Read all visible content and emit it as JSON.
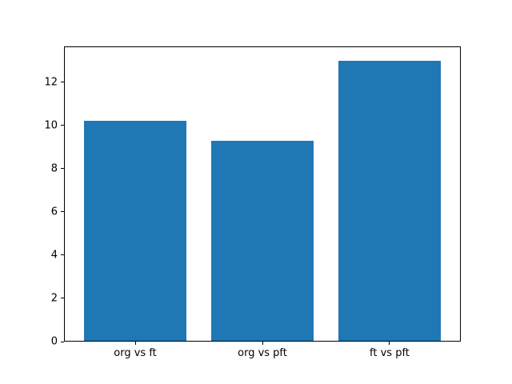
{
  "chart_data": {
    "type": "bar",
    "categories": [
      "org vs ft",
      "org vs pft",
      "ft vs pft"
    ],
    "values": [
      10.2,
      9.3,
      13.0
    ],
    "title": "",
    "xlabel": "",
    "ylabel": "",
    "yticks": [
      0,
      2,
      4,
      6,
      8,
      10,
      12
    ],
    "ylim": [
      0,
      13.65
    ],
    "xlim": [
      -0.56,
      2.56
    ],
    "bar_width": 0.8,
    "bar_color": "#1f77b4",
    "grid": false,
    "legend": "none"
  }
}
